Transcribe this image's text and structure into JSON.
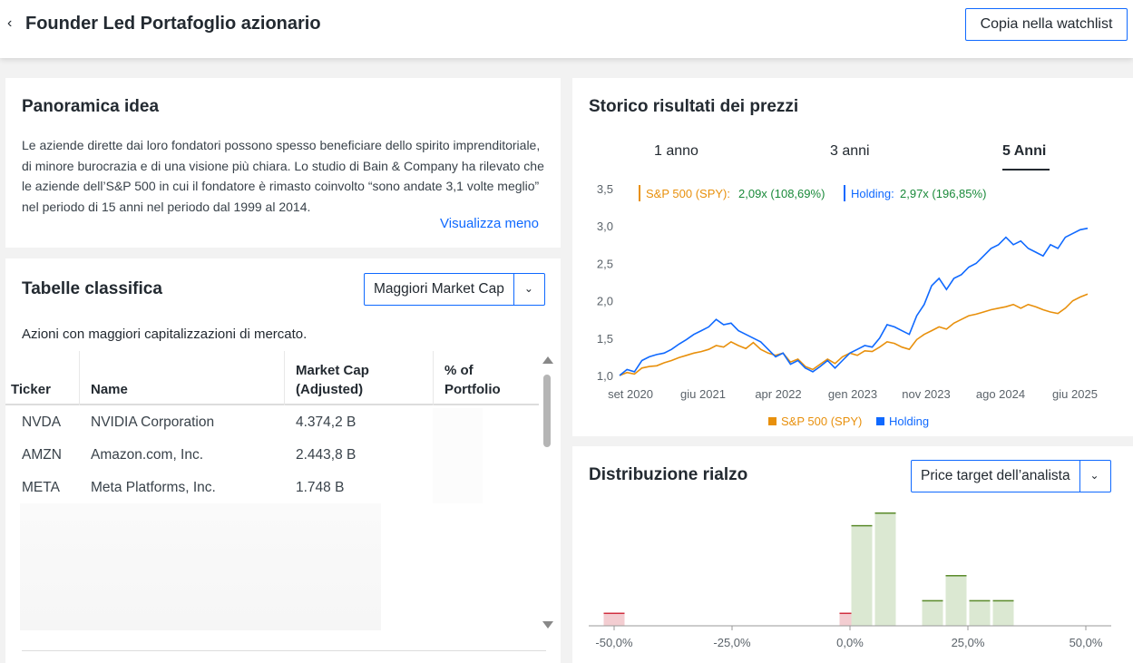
{
  "header": {
    "back_icon": "chevron-left-icon",
    "title": "Founder Led Portafoglio azionario",
    "watchlist_button": "Copia nella watchlist"
  },
  "overview": {
    "title": "Panoramica idea",
    "text": "Le aziende dirette dai loro fondatori possono spesso beneficiare dello spirito imprenditoriale, di minore burocrazia e di una visione più chiara. Lo studio di Bain & Company ha rilevato che le aziende dell’S&P 500 in cui il fondatore è rimasto coinvolto “sono andate 3,1 volte meglio” nel periodo di 15 anni nel periodo dal 1999 al 2014.",
    "toggle_link": "Visualizza meno"
  },
  "leaderboard": {
    "title": "Tabelle classifica",
    "dropdown_value": "Maggiori Market Cap",
    "subtitle": "Azioni con maggiori capitalizzazioni di mercato.",
    "columns": [
      "Ticker",
      "Name",
      "Market Cap\n(Adjusted)",
      "% of\nPortfolio"
    ],
    "rows": [
      {
        "ticker": "NVDA",
        "name": "NVIDIA Corporation",
        "market_cap": "4.374,2 B"
      },
      {
        "ticker": "AMZN",
        "name": "Amazon.com, Inc.",
        "market_cap": "2.443,8 B"
      },
      {
        "ticker": "META",
        "name": "Meta Platforms, Inc.",
        "market_cap": "1.748 B"
      }
    ]
  },
  "performance": {
    "title": "Storico risultati dei prezzi",
    "tabs": [
      "1 anno",
      "3 anni",
      "5 Anni"
    ],
    "active_tab": "5 Anni",
    "legend_top": {
      "spy_label": "S&P 500 (SPY):",
      "spy_value": "2,09x (108,69%)",
      "holding_label": "Holding:",
      "holding_value": "2,97x (196,85%)"
    },
    "legend_bottom": {
      "spy": "S&P 500 (SPY)",
      "holding": "Holding"
    },
    "colors": {
      "spy": "#e8900c",
      "holding": "#0f69ff",
      "value_green": "#1a8a3a"
    }
  },
  "distribution": {
    "title": "Distribuzione rialzo",
    "dropdown_value": "Price target dell’analista",
    "colors": {
      "positive": "#dbe8d2",
      "positive_edge": "#5a8a2a",
      "negative": "#f3cdd1",
      "negative_edge": "#d03040"
    }
  },
  "chart_data": [
    {
      "type": "line",
      "title": "",
      "xlabel": "",
      "ylabel": "",
      "x_ticks": [
        "set 2020",
        "giu 2021",
        "apr 2022",
        "gen 2023",
        "nov 2023",
        "ago 2024",
        "giu 2025"
      ],
      "y_ticks": [
        "1,0",
        "1,5",
        "2,0",
        "2,5",
        "3,0",
        "3,5"
      ],
      "ylim": [
        1.0,
        3.5
      ],
      "legend": "top",
      "series": [
        {
          "name": "S&P 500 (SPY)",
          "values": [
            1.0,
            1.04,
            1.02,
            1.1,
            1.12,
            1.13,
            1.17,
            1.2,
            1.24,
            1.27,
            1.3,
            1.32,
            1.35,
            1.4,
            1.38,
            1.45,
            1.4,
            1.36,
            1.44,
            1.35,
            1.3,
            1.27,
            1.3,
            1.18,
            1.22,
            1.12,
            1.08,
            1.15,
            1.22,
            1.16,
            1.25,
            1.3,
            1.27,
            1.33,
            1.32,
            1.38,
            1.45,
            1.43,
            1.38,
            1.35,
            1.48,
            1.55,
            1.6,
            1.65,
            1.62,
            1.7,
            1.75,
            1.8,
            1.82,
            1.85,
            1.88,
            1.9,
            1.92,
            1.95,
            1.9,
            1.95,
            1.92,
            1.88,
            1.85,
            1.83,
            1.9,
            2.0,
            2.05,
            2.09
          ]
        },
        {
          "name": "Holding",
          "values": [
            1.0,
            1.08,
            1.05,
            1.2,
            1.25,
            1.28,
            1.3,
            1.35,
            1.42,
            1.48,
            1.55,
            1.6,
            1.65,
            1.75,
            1.68,
            1.7,
            1.6,
            1.55,
            1.5,
            1.45,
            1.35,
            1.25,
            1.3,
            1.15,
            1.2,
            1.1,
            1.05,
            1.12,
            1.2,
            1.1,
            1.2,
            1.3,
            1.35,
            1.4,
            1.38,
            1.5,
            1.68,
            1.65,
            1.6,
            1.55,
            1.8,
            1.95,
            2.2,
            2.3,
            2.15,
            2.3,
            2.35,
            2.45,
            2.5,
            2.6,
            2.7,
            2.75,
            2.85,
            2.75,
            2.8,
            2.7,
            2.65,
            2.6,
            2.75,
            2.7,
            2.85,
            2.9,
            2.95,
            2.97
          ]
        }
      ]
    },
    {
      "type": "bar",
      "title": "",
      "xlabel": "",
      "ylabel": "",
      "x_ticks": [
        "-50,0%",
        "-25,0%",
        "0,0%",
        "25,0%",
        "50,0%"
      ],
      "bins": [
        {
          "center": -50,
          "count": 1
        },
        {
          "center": 0,
          "count": 1
        },
        {
          "center": 2.5,
          "count": 8
        },
        {
          "center": 7.5,
          "count": 9
        },
        {
          "center": 17.5,
          "count": 2
        },
        {
          "center": 22.5,
          "count": 4
        },
        {
          "center": 27.5,
          "count": 2
        },
        {
          "center": 32.5,
          "count": 2
        }
      ]
    }
  ]
}
